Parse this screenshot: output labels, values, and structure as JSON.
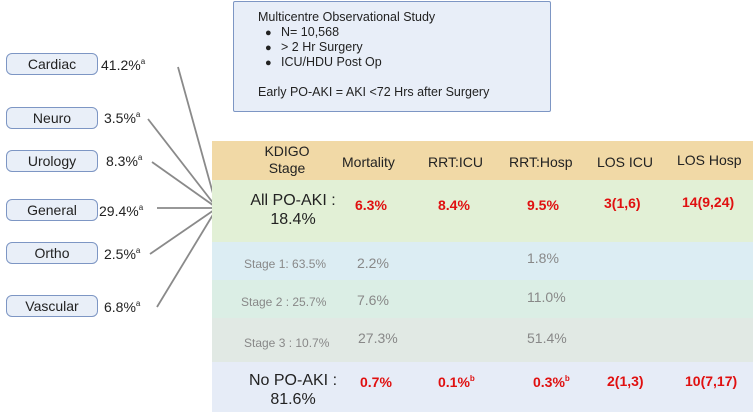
{
  "info": {
    "title": "Multicentre Observational Study",
    "bullets": [
      "N= 10,568",
      "> 2 Hr Surgery",
      "ICU/HDU Post Op"
    ],
    "definition": "Early PO-AKI = AKI <72 Hrs after Surgery"
  },
  "specialties": [
    {
      "name": "Cardiac",
      "pct": "41.2%",
      "sup": "a"
    },
    {
      "name": "Neuro",
      "pct": "3.5%",
      "sup": "a"
    },
    {
      "name": "Urology",
      "pct": "8.3%",
      "sup": "a"
    },
    {
      "name": "General",
      "pct": "29.4%",
      "sup": "a"
    },
    {
      "name": "Ortho",
      "pct": "2.5%",
      "sup": "a"
    },
    {
      "name": "Vascular",
      "pct": "6.8%",
      "sup": "a"
    }
  ],
  "table": {
    "headers": {
      "stage": "KDIGO Stage",
      "mortality": "Mortality",
      "rrt_icu": "RRT:ICU",
      "rrt_hosp": "RRT:Hosp",
      "los_icu": "LOS ICU",
      "los_hosp": "LOS Hosp"
    },
    "all_po_aki": {
      "label": "All PO-AKI : 18.4%",
      "mortality": "6.3%",
      "rrt_icu": "8.4%",
      "rrt_hosp": "9.5%",
      "los_icu": "3(1,6)",
      "los_hosp": "14(9,24)"
    },
    "stages": [
      {
        "label": "Stage 1: 63.5%",
        "mortality": "2.2%",
        "rrt_hosp": "1.8%"
      },
      {
        "label": "Stage 2 : 25.7%",
        "mortality": "7.6%",
        "rrt_hosp": "11.0%"
      },
      {
        "label": "Stage 3 : 10.7%",
        "mortality": "27.3%",
        "rrt_hosp": "51.4%"
      }
    ],
    "no_po_aki": {
      "label": "No PO-AKI : 81.6%",
      "mortality": "0.7%",
      "rrt_icu": "0.1%",
      "rrt_icu_sup": "b",
      "rrt_hosp": "0.3%",
      "rrt_hosp_sup": "b",
      "los_icu": "2(1,3)",
      "los_hosp": "10(7,17)"
    }
  },
  "colors": {
    "header_band": "#f1d9a6",
    "all_band": "#e2f0d6",
    "stage1_band": "#dcedf3",
    "stage2_band": "#dbeee5",
    "stage3_band": "#e1e9e4",
    "no_band": "#e6ecf7",
    "red": "#e01010",
    "box_border": "#7d96c4"
  }
}
